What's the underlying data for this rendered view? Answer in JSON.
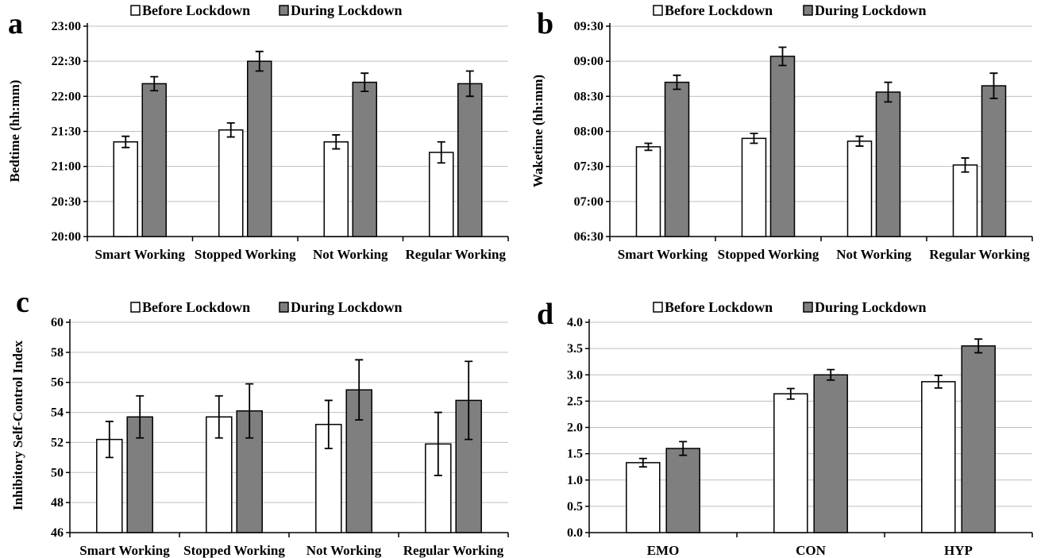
{
  "colors": {
    "before": "#ffffff",
    "during": "#7f7f7f",
    "grid": "#bfbfbf",
    "stroke": "#000000"
  },
  "legend": {
    "before": "Before Lockdown",
    "during": "During Lockdown"
  },
  "chart_data": [
    {
      "panel": "a",
      "type": "bar",
      "ylabel": "Bedtime (hh:mm)",
      "ylim": [
        20.0,
        23.0
      ],
      "yticks": [
        20.0,
        20.5,
        21.0,
        21.5,
        22.0,
        22.5,
        23.0
      ],
      "yticklabels": [
        "20:00",
        "20:30",
        "21:00",
        "21:30",
        "22:00",
        "22:30",
        "23:00"
      ],
      "categories": [
        "Smart Working",
        "Stopped Working",
        "Not Working",
        "Regular Working"
      ],
      "series": [
        {
          "name": "Before Lockdown",
          "values": [
            21.35,
            21.52,
            21.35,
            21.2
          ],
          "errors": [
            0.08,
            0.1,
            0.1,
            0.15
          ]
        },
        {
          "name": "During Lockdown",
          "values": [
            22.18,
            22.5,
            22.2,
            22.18
          ],
          "errors": [
            0.1,
            0.14,
            0.13,
            0.18
          ]
        }
      ]
    },
    {
      "panel": "b",
      "type": "bar",
      "ylabel": "Waketime (hh:mm)",
      "ylim": [
        6.5,
        9.5
      ],
      "yticks": [
        6.5,
        7.0,
        7.5,
        8.0,
        8.5,
        9.0,
        9.5
      ],
      "yticklabels": [
        "06:30",
        "07:00",
        "07:30",
        "08:00",
        "08:30",
        "09:00",
        "09:30"
      ],
      "categories": [
        "Smart Working",
        "Stopped Working",
        "Not Working",
        "Regular Working"
      ],
      "series": [
        {
          "name": "Before Lockdown",
          "values": [
            7.78,
            7.9,
            7.86,
            7.52
          ],
          "errors": [
            0.05,
            0.07,
            0.07,
            0.1
          ]
        },
        {
          "name": "During Lockdown",
          "values": [
            8.7,
            9.07,
            8.56,
            8.65
          ],
          "errors": [
            0.1,
            0.13,
            0.14,
            0.18
          ]
        }
      ]
    },
    {
      "panel": "c",
      "type": "bar",
      "ylabel": "Inhibitory Self-Control Index",
      "ylim": [
        46,
        60
      ],
      "yticks": [
        46,
        48,
        50,
        52,
        54,
        56,
        58,
        60
      ],
      "yticklabels": [
        "46",
        "48",
        "50",
        "52",
        "54",
        "56",
        "58",
        "60"
      ],
      "categories": [
        "Smart Working",
        "Stopped Working",
        "Not Working",
        "Regular Working"
      ],
      "series": [
        {
          "name": "Before Lockdown",
          "values": [
            52.2,
            53.7,
            53.2,
            51.9
          ],
          "errors": [
            1.2,
            1.4,
            1.6,
            2.1
          ]
        },
        {
          "name": "During Lockdown",
          "values": [
            53.7,
            54.1,
            55.5,
            54.8
          ],
          "errors": [
            1.4,
            1.8,
            2.0,
            2.6
          ]
        }
      ]
    },
    {
      "panel": "d",
      "type": "bar",
      "ylabel": "",
      "ylim": [
        0.0,
        4.0
      ],
      "yticks": [
        0.0,
        0.5,
        1.0,
        1.5,
        2.0,
        2.5,
        3.0,
        3.5,
        4.0
      ],
      "yticklabels": [
        "0.0",
        "0.5",
        "1.0",
        "1.5",
        "2.0",
        "2.5",
        "3.0",
        "3.5",
        "4.0"
      ],
      "categories": [
        "EMO",
        "CON",
        "HYP"
      ],
      "series": [
        {
          "name": "Before Lockdown",
          "values": [
            1.33,
            2.64,
            2.87
          ],
          "errors": [
            0.08,
            0.1,
            0.12
          ]
        },
        {
          "name": "During Lockdown",
          "values": [
            1.6,
            3.0,
            3.55
          ],
          "errors": [
            0.13,
            0.1,
            0.13
          ]
        }
      ]
    }
  ]
}
